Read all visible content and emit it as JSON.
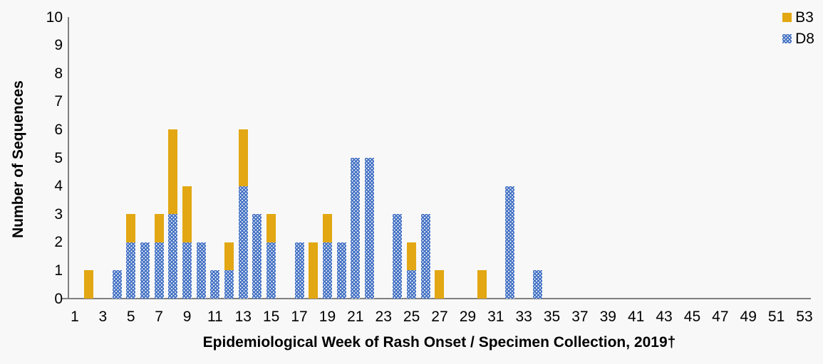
{
  "colors": {
    "background": "#f8f8f8",
    "axis": "#808080",
    "text": "#000000",
    "b3": "#e2a712",
    "d8": "#4472c4"
  },
  "legend": {
    "items": [
      {
        "label": "B3",
        "color": "#e2a712",
        "pattern": "solid"
      },
      {
        "label": "D8",
        "color": "#4472c4",
        "pattern": "dotted"
      }
    ]
  },
  "chart_data": {
    "type": "bar",
    "stacked": true,
    "title": "",
    "xlabel": "Epidemiological Week of Rash Onset / Specimen Collection, 2019†",
    "ylabel": "Number of Sequences",
    "xlim": [
      1,
      53
    ],
    "ylim": [
      0,
      10
    ],
    "x_ticks": [
      1,
      3,
      5,
      7,
      9,
      11,
      13,
      15,
      17,
      19,
      21,
      23,
      25,
      27,
      29,
      31,
      33,
      35,
      37,
      39,
      41,
      43,
      45,
      47,
      49,
      51,
      53
    ],
    "y_ticks": [
      0,
      1,
      2,
      3,
      4,
      5,
      6,
      7,
      8,
      9,
      10
    ],
    "grid": false,
    "legend_position": "top-right",
    "series": [
      {
        "name": "D8",
        "color": "#4472c4",
        "pattern": "dotted",
        "stack_order": "bottom",
        "values_by_week": {
          "4": 1,
          "5": 2,
          "6": 2,
          "7": 2,
          "8": 3,
          "9": 2,
          "10": 2,
          "11": 1,
          "12": 1,
          "13": 4,
          "14": 3,
          "15": 2,
          "17": 2,
          "19": 2,
          "20": 2,
          "21": 5,
          "22": 5,
          "24": 3,
          "25": 1,
          "26": 3,
          "32": 4,
          "34": 1
        }
      },
      {
        "name": "B3",
        "color": "#e2a712",
        "pattern": "solid",
        "stack_order": "top",
        "values_by_week": {
          "2": 1,
          "5": 1,
          "7": 1,
          "8": 3,
          "9": 2,
          "12": 1,
          "13": 2,
          "15": 1,
          "18": 2,
          "19": 1,
          "25": 1,
          "27": 1,
          "30": 1
        }
      }
    ]
  }
}
